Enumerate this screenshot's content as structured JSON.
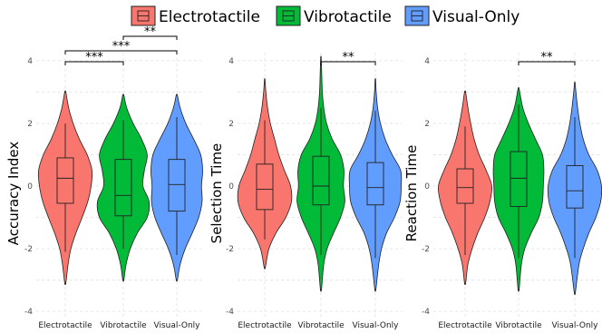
{
  "legend": {
    "items": [
      {
        "label": "Electrotactile",
        "color": "#F8766D"
      },
      {
        "label": "Vibrotactile",
        "color": "#00BA38"
      },
      {
        "label": "Visual-Only",
        "color": "#619CFF"
      }
    ]
  },
  "chart_data": [
    {
      "type": "violin",
      "ylabel": "Accuracy Index",
      "ylim": [
        -4.2,
        4.2
      ],
      "yticks": [
        "4",
        "2",
        "0",
        "-2",
        "-4"
      ],
      "categories": [
        "Electrotactile",
        "Vibrotactile",
        "Visual-Only"
      ],
      "groups": [
        {
          "name": "Electrotactile",
          "min": -3.1,
          "max": 3.0,
          "whisker_low": -2.1,
          "q1": -0.55,
          "median": 0.25,
          "q3": 0.9,
          "whisker_high": 2.0,
          "density": [
            [
              -3.1,
              0.02
            ],
            [
              -2.5,
              0.1
            ],
            [
              -2.0,
              0.2
            ],
            [
              -1.5,
              0.38
            ],
            [
              -1.0,
              0.6
            ],
            [
              -0.5,
              0.8
            ],
            [
              0.0,
              0.92
            ],
            [
              0.5,
              0.95
            ],
            [
              1.0,
              0.78
            ],
            [
              1.5,
              0.5
            ],
            [
              2.0,
              0.28
            ],
            [
              2.5,
              0.12
            ],
            [
              3.0,
              0.02
            ]
          ]
        },
        {
          "name": "Vibrotactile",
          "min": -3.0,
          "max": 2.9,
          "whisker_low": -2.0,
          "q1": -0.95,
          "median": -0.3,
          "q3": 0.85,
          "whisker_high": 2.1,
          "density": [
            [
              -3.0,
              0.02
            ],
            [
              -2.5,
              0.1
            ],
            [
              -2.0,
              0.25
            ],
            [
              -1.5,
              0.5
            ],
            [
              -1.0,
              0.85
            ],
            [
              -0.5,
              0.92
            ],
            [
              0.0,
              0.7
            ],
            [
              0.5,
              0.75
            ],
            [
              1.0,
              0.85
            ],
            [
              1.5,
              0.65
            ],
            [
              2.0,
              0.35
            ],
            [
              2.5,
              0.12
            ],
            [
              2.9,
              0.02
            ]
          ]
        },
        {
          "name": "Visual-Only",
          "min": -3.0,
          "max": 2.9,
          "whisker_low": -2.2,
          "q1": -0.8,
          "median": 0.05,
          "q3": 0.85,
          "whisker_high": 2.2,
          "density": [
            [
              -3.0,
              0.02
            ],
            [
              -2.5,
              0.12
            ],
            [
              -2.0,
              0.3
            ],
            [
              -1.5,
              0.55
            ],
            [
              -1.0,
              0.78
            ],
            [
              -0.5,
              0.9
            ],
            [
              0.0,
              0.88
            ],
            [
              0.5,
              0.92
            ],
            [
              1.0,
              0.85
            ],
            [
              1.5,
              0.6
            ],
            [
              2.0,
              0.32
            ],
            [
              2.5,
              0.12
            ],
            [
              2.9,
              0.02
            ]
          ]
        }
      ],
      "significance": [
        {
          "from": 0,
          "to": 2,
          "y": 4.5,
          "label": "***"
        },
        {
          "from": 0,
          "to": 1,
          "y": 4.2,
          "label": "***"
        },
        {
          "from": 1,
          "to": 2,
          "y": 5.0,
          "label": "**"
        }
      ]
    },
    {
      "type": "violin",
      "ylabel": "Selection Time",
      "ylim": [
        -4.2,
        4.2
      ],
      "yticks": [
        "4",
        "2",
        "0",
        "-2",
        "-4"
      ],
      "categories": [
        "Electrotactile",
        "Vibrotactile",
        "Visual-Only"
      ],
      "groups": [
        {
          "name": "Electrotactile",
          "min": -2.6,
          "max": 3.4,
          "whisker_low": -1.7,
          "q1": -0.75,
          "median": -0.1,
          "q3": 0.7,
          "whisker_high": 2.1,
          "density": [
            [
              -2.6,
              0.02
            ],
            [
              -2.0,
              0.15
            ],
            [
              -1.5,
              0.4
            ],
            [
              -1.0,
              0.75
            ],
            [
              -0.5,
              0.95
            ],
            [
              0.0,
              0.92
            ],
            [
              0.5,
              0.7
            ],
            [
              1.0,
              0.5
            ],
            [
              1.5,
              0.35
            ],
            [
              2.0,
              0.2
            ],
            [
              2.5,
              0.1
            ],
            [
              3.0,
              0.04
            ],
            [
              3.4,
              0.01
            ]
          ]
        },
        {
          "name": "Vibrotactile",
          "min": -3.3,
          "max": 4.1,
          "whisker_low": -2.2,
          "q1": -0.6,
          "median": 0.0,
          "q3": 0.95,
          "whisker_high": 2.5,
          "density": [
            [
              -3.3,
              0.02
            ],
            [
              -2.5,
              0.1
            ],
            [
              -2.0,
              0.22
            ],
            [
              -1.5,
              0.45
            ],
            [
              -1.0,
              0.7
            ],
            [
              -0.5,
              0.85
            ],
            [
              0.0,
              0.8
            ],
            [
              0.5,
              0.82
            ],
            [
              1.0,
              0.7
            ],
            [
              1.5,
              0.4
            ],
            [
              2.0,
              0.2
            ],
            [
              2.5,
              0.1
            ],
            [
              3.0,
              0.05
            ],
            [
              3.5,
              0.03
            ],
            [
              4.1,
              0.01
            ]
          ]
        },
        {
          "name": "Visual-Only",
          "min": -3.3,
          "max": 3.4,
          "whisker_low": -2.3,
          "q1": -0.6,
          "median": -0.05,
          "q3": 0.75,
          "whisker_high": 2.4,
          "density": [
            [
              -3.3,
              0.02
            ],
            [
              -2.5,
              0.12
            ],
            [
              -2.0,
              0.22
            ],
            [
              -1.5,
              0.4
            ],
            [
              -1.0,
              0.68
            ],
            [
              -0.5,
              0.88
            ],
            [
              0.0,
              0.92
            ],
            [
              0.5,
              0.9
            ],
            [
              1.0,
              0.6
            ],
            [
              1.5,
              0.35
            ],
            [
              2.0,
              0.18
            ],
            [
              2.5,
              0.08
            ],
            [
              3.0,
              0.03
            ],
            [
              3.4,
              0.01
            ]
          ]
        }
      ],
      "significance": [
        {
          "from": 1,
          "to": 2,
          "y": 4.2,
          "label": "**"
        }
      ]
    },
    {
      "type": "violin",
      "ylabel": "Reaction Time",
      "ylim": [
        -4.2,
        4.2
      ],
      "yticks": [
        "4",
        "2",
        "0",
        "-2",
        "-4"
      ],
      "categories": [
        "Electrotactile",
        "Vibrotactile",
        "Visual-Only"
      ],
      "groups": [
        {
          "name": "Electrotactile",
          "min": -3.1,
          "max": 3.0,
          "whisker_low": -2.2,
          "q1": -0.55,
          "median": -0.05,
          "q3": 0.55,
          "whisker_high": 1.9,
          "density": [
            [
              -3.1,
              0.02
            ],
            [
              -2.5,
              0.1
            ],
            [
              -2.0,
              0.25
            ],
            [
              -1.5,
              0.45
            ],
            [
              -1.0,
              0.7
            ],
            [
              -0.5,
              0.88
            ],
            [
              0.0,
              0.95
            ],
            [
              0.5,
              0.75
            ],
            [
              1.0,
              0.5
            ],
            [
              1.5,
              0.32
            ],
            [
              2.0,
              0.2
            ],
            [
              2.5,
              0.1
            ],
            [
              3.0,
              0.02
            ]
          ]
        },
        {
          "name": "Vibrotactile",
          "min": -3.3,
          "max": 3.1,
          "whisker_low": -2.3,
          "q1": -0.65,
          "median": 0.25,
          "q3": 1.1,
          "whisker_high": 2.6,
          "density": [
            [
              -3.3,
              0.02
            ],
            [
              -2.5,
              0.1
            ],
            [
              -2.0,
              0.22
            ],
            [
              -1.5,
              0.45
            ],
            [
              -1.0,
              0.72
            ],
            [
              -0.5,
              0.85
            ],
            [
              0.0,
              0.88
            ],
            [
              0.5,
              0.9
            ],
            [
              1.0,
              0.85
            ],
            [
              1.5,
              0.6
            ],
            [
              2.0,
              0.35
            ],
            [
              2.5,
              0.15
            ],
            [
              3.1,
              0.02
            ]
          ]
        },
        {
          "name": "Visual-Only",
          "min": -3.4,
          "max": 3.3,
          "whisker_low": -2.3,
          "q1": -0.7,
          "median": -0.15,
          "q3": 0.65,
          "whisker_high": 2.2,
          "density": [
            [
              -3.4,
              0.02
            ],
            [
              -2.5,
              0.15
            ],
            [
              -2.0,
              0.3
            ],
            [
              -1.5,
              0.5
            ],
            [
              -1.0,
              0.75
            ],
            [
              -0.5,
              0.92
            ],
            [
              0.0,
              0.95
            ],
            [
              0.5,
              0.8
            ],
            [
              1.0,
              0.5
            ],
            [
              1.5,
              0.3
            ],
            [
              2.0,
              0.18
            ],
            [
              2.5,
              0.1
            ],
            [
              3.0,
              0.04
            ],
            [
              3.3,
              0.01
            ]
          ]
        }
      ],
      "significance": [
        {
          "from": 1,
          "to": 2,
          "y": 4.2,
          "label": "**"
        }
      ]
    }
  ]
}
